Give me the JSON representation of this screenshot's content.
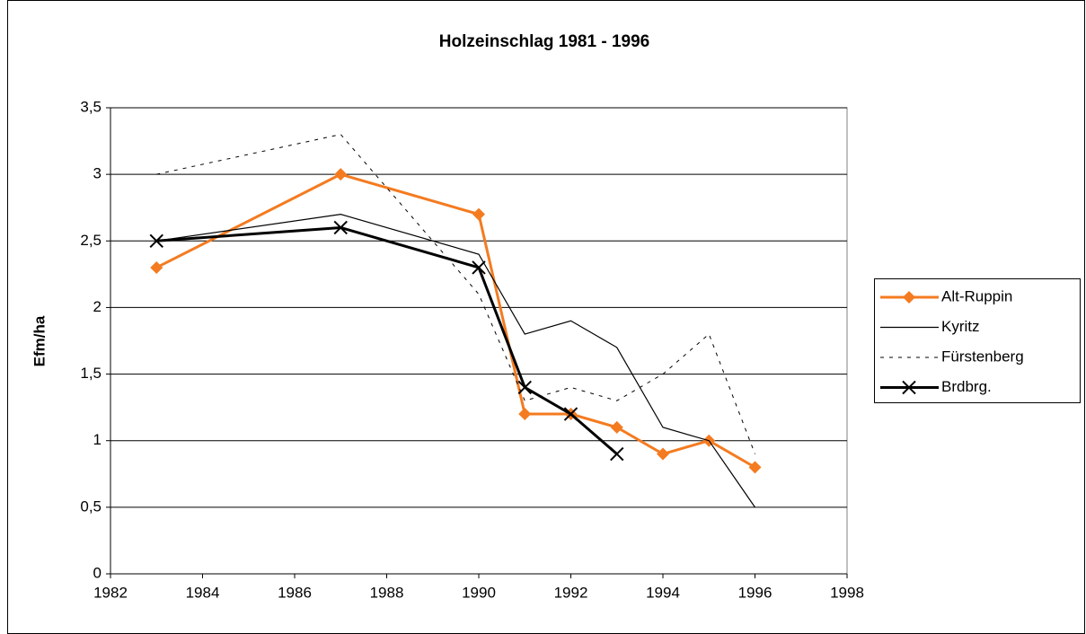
{
  "chart_data": {
    "type": "line",
    "title": "Holzeinschlag 1981 - 1996",
    "y_label": "Efm/ha",
    "x": [
      1983,
      1987,
      1990,
      1991,
      1992,
      1993,
      1994,
      1995,
      1996
    ],
    "series": [
      {
        "name": "Alt-Ruppin",
        "color": "#f47b20",
        "width": 3,
        "marker": "diamond",
        "dash": "solid",
        "values": [
          2.3,
          3.0,
          2.7,
          1.2,
          1.2,
          1.1,
          0.9,
          1.0,
          0.8
        ]
      },
      {
        "name": "Kyritz",
        "color": "#000000",
        "width": 1.2,
        "marker": "none",
        "dash": "solid",
        "values": [
          2.5,
          2.7,
          2.4,
          1.8,
          1.9,
          1.7,
          1.1,
          1.0,
          0.5
        ]
      },
      {
        "name": "Fürstenberg",
        "color": "#000000",
        "width": 1,
        "marker": "none",
        "dash": "dashed",
        "values": [
          3.0,
          3.3,
          2.1,
          1.3,
          1.4,
          1.3,
          1.5,
          1.8,
          0.9
        ]
      },
      {
        "name": "Brdbrg.",
        "color": "#000000",
        "width": 3,
        "marker": "x",
        "dash": "solid",
        "values": [
          2.5,
          2.6,
          2.3,
          1.4,
          1.2,
          0.9,
          null,
          null,
          null
        ]
      }
    ],
    "xlim": [
      1982,
      1998
    ],
    "xticks": [
      1982,
      1984,
      1986,
      1988,
      1990,
      1992,
      1994,
      1996,
      1998
    ],
    "ylim": [
      0,
      3.5
    ],
    "yticks": [
      0,
      {
        "value": 0.5,
        "label": "0,5"
      },
      1,
      {
        "value": 1.5,
        "label": "1,5"
      },
      2,
      {
        "value": 2.5,
        "label": "2,5"
      },
      3,
      {
        "value": 3.5,
        "label": "3,5"
      }
    ],
    "grid": true,
    "legend": "right"
  }
}
